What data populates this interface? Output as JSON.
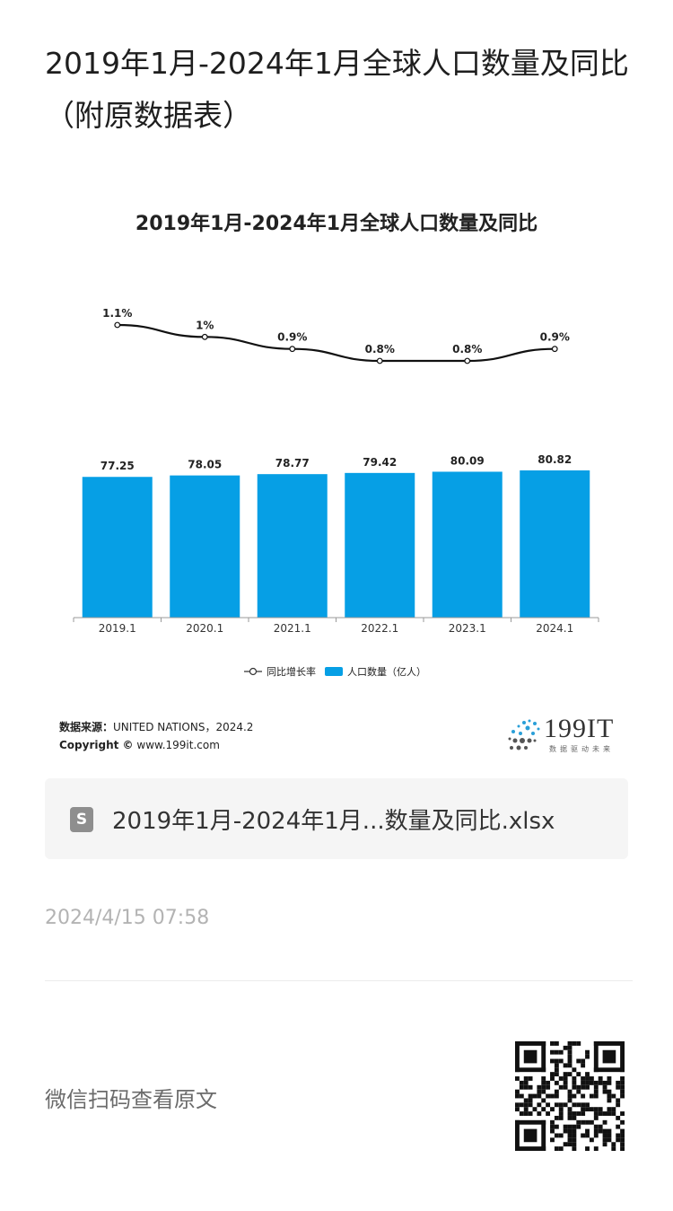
{
  "page": {
    "title": "2019年1月-2024年1月全球人口数量及同比（附原数据表）",
    "source_label": "数据来源：",
    "source_value": "UNITED NATIONS，2024.2",
    "copyright_label": "Copyright ©",
    "copyright_value": "www.199it.com",
    "logo_text": "199IT",
    "logo_sub": "数据驱动未来",
    "file_name": "2019年1月-2024年1月...数量及同比.xlsx",
    "file_icon_letter": "S",
    "timestamp": "2024/4/15 07:58",
    "scan_text": "微信扫码查看原文"
  },
  "colors": {
    "bar": "#069fe5",
    "line": "#111111",
    "axis": "#999999"
  },
  "chart_data": {
    "type": "bar+line",
    "title": "2019年1月-2024年1月全球人口数量及同比",
    "categories": [
      "2019.1",
      "2020.1",
      "2021.1",
      "2022.1",
      "2023.1",
      "2024.1"
    ],
    "series": [
      {
        "name": "人口数量（亿人）",
        "type": "bar",
        "values": [
          77.25,
          78.05,
          78.77,
          79.42,
          80.09,
          80.82
        ],
        "labels": [
          "77.25",
          "78.05",
          "78.77",
          "79.42",
          "80.09",
          "80.82"
        ]
      },
      {
        "name": "同比增长率",
        "type": "line",
        "values": [
          1.1,
          1.0,
          0.9,
          0.8,
          0.8,
          0.9
        ],
        "labels": [
          "1.1%",
          "1%",
          "0.9%",
          "0.8%",
          "0.8%",
          "0.9%"
        ]
      }
    ],
    "legend": [
      "同比增长率",
      "人口数量（亿人）"
    ],
    "legend_position": "bottom",
    "bar_ylim": [
      0,
      82
    ],
    "line_ylim": [
      0.8,
      1.1
    ],
    "grid": false
  }
}
